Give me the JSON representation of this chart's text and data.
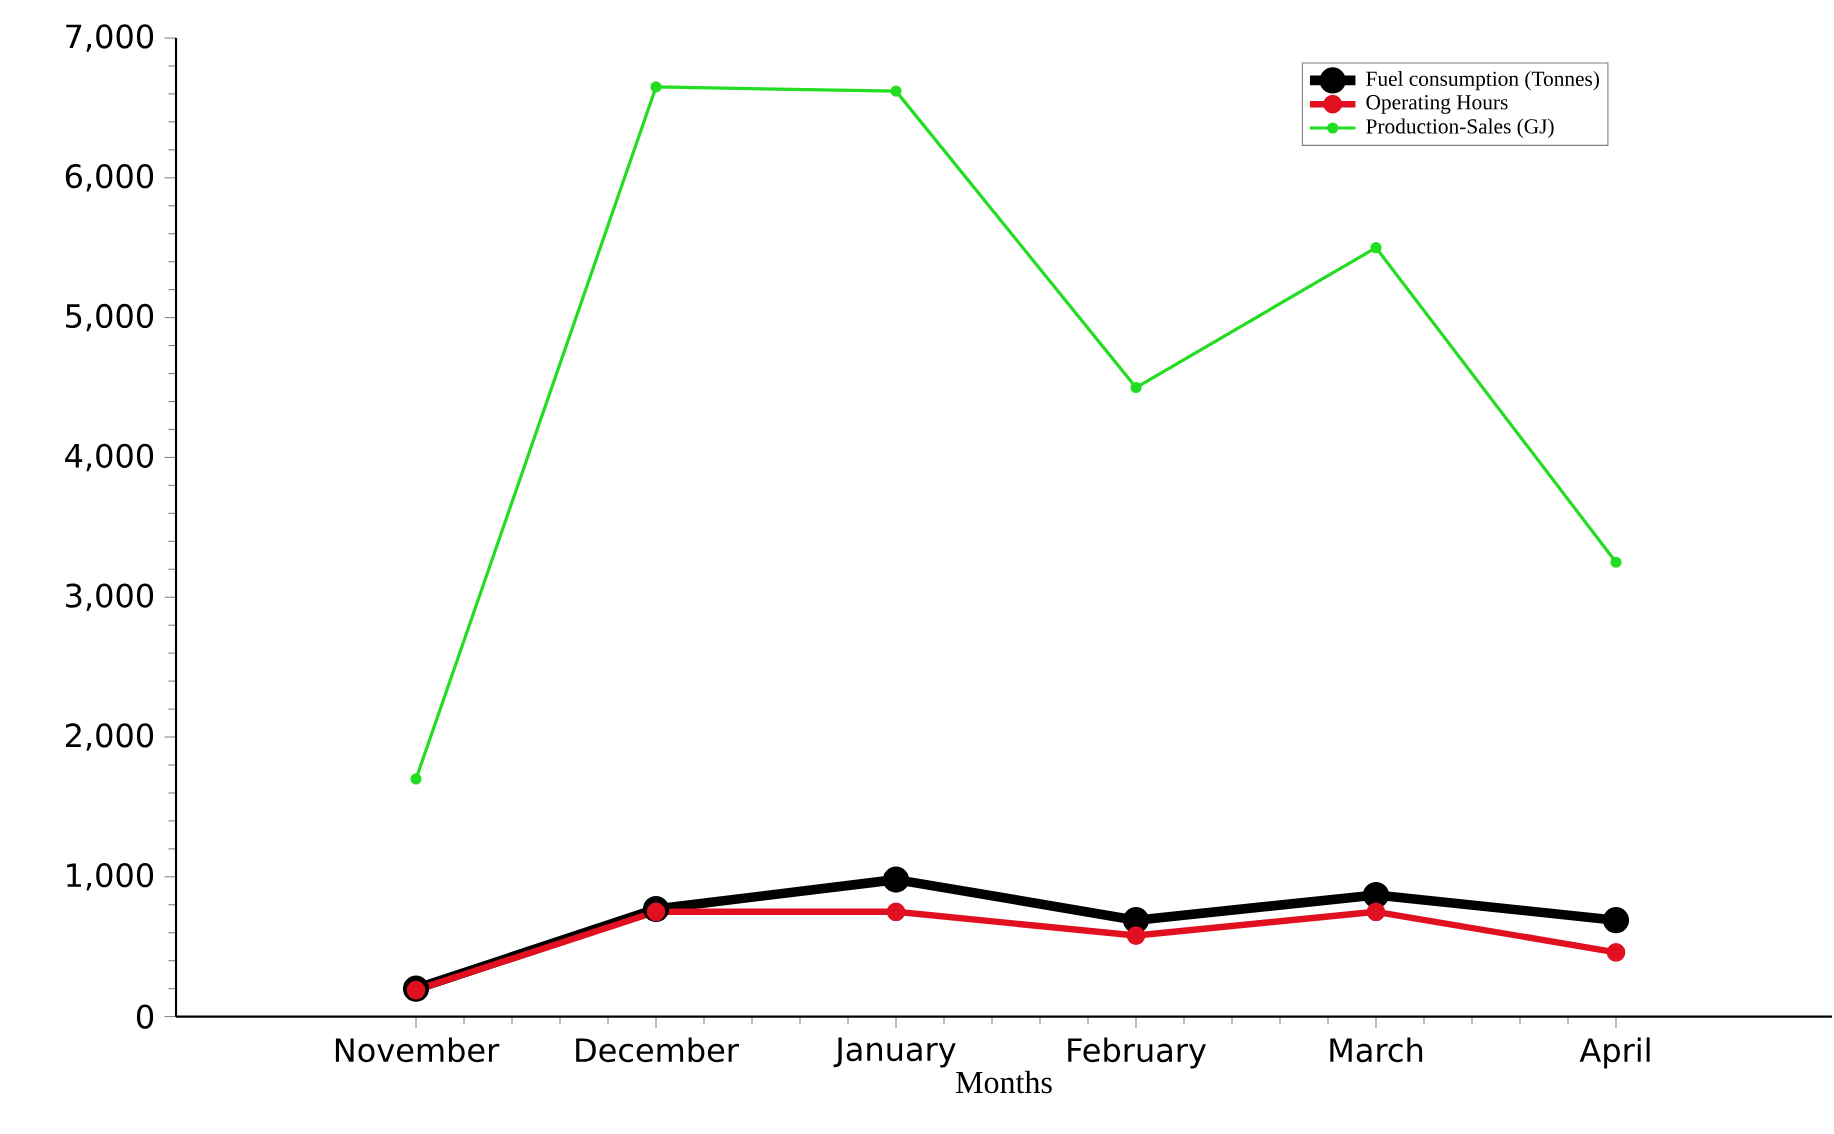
{
  "chart_data": {
    "type": "line",
    "xlabel": "Months",
    "categories": [
      "November",
      "December",
      "January",
      "February",
      "March",
      "April"
    ],
    "series": [
      {
        "name": "Fuel consumption (Tonnes)",
        "color": "#000000",
        "values": [
          200,
          770,
          980,
          690,
          870,
          690
        ]
      },
      {
        "name": "Operating Hours",
        "color": "#e01020",
        "values": [
          190,
          750,
          750,
          580,
          750,
          460
        ]
      },
      {
        "name": "Production-Sales (GJ)",
        "color": "#22dd22",
        "values": [
          1700,
          6650,
          6620,
          4500,
          5500,
          3250
        ]
      }
    ],
    "ylim": [
      0,
      7000
    ],
    "yticks": [
      {
        "value": 0,
        "label": "0"
      },
      {
        "value": 1000,
        "label": "1,000"
      },
      {
        "value": 2000,
        "label": "2,000"
      },
      {
        "value": 3000,
        "label": "3,000"
      },
      {
        "value": 4000,
        "label": "4,000"
      },
      {
        "value": 5000,
        "label": "5,000"
      },
      {
        "value": 6000,
        "label": "6,000"
      },
      {
        "value": 7000,
        "label": "7,000"
      }
    ],
    "grid": false,
    "legend": "top right",
    "marker": "circle",
    "line_style": "solid"
  }
}
